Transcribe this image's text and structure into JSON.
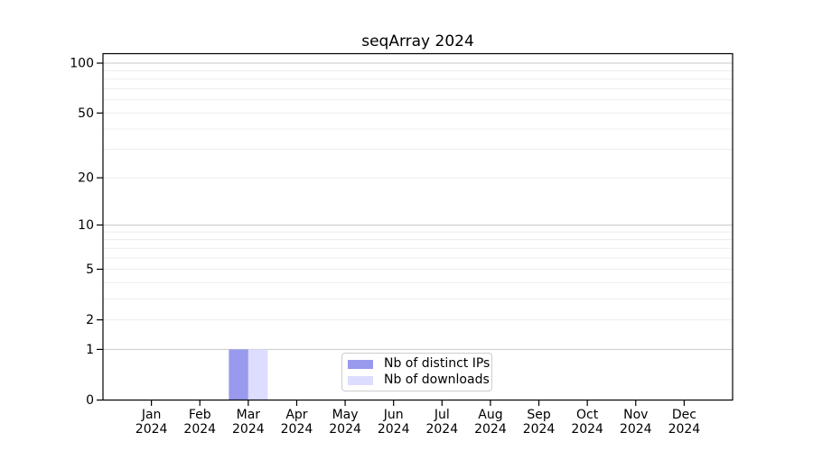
{
  "chart_data": {
    "type": "bar",
    "title": "seqArray 2024",
    "categories": [
      "Jan",
      "Feb",
      "Mar",
      "Apr",
      "May",
      "Jun",
      "Jul",
      "Aug",
      "Sep",
      "Oct",
      "Nov",
      "Dec"
    ],
    "x_tick_year": "2024",
    "series": [
      {
        "name": "Nb of distinct IPs",
        "color": "#9999ee",
        "values": [
          0,
          0,
          1,
          0,
          0,
          0,
          0,
          0,
          0,
          0,
          0,
          0
        ]
      },
      {
        "name": "Nb of downloads",
        "color": "#ddddff",
        "values": [
          0,
          0,
          1,
          0,
          0,
          0,
          0,
          0,
          0,
          0,
          0,
          0
        ]
      }
    ],
    "yscale": "log1p",
    "y_axis": {
      "tick_values": [
        0,
        1,
        2,
        5,
        10,
        20,
        50,
        100
      ],
      "range_max": 100,
      "major_grid_values": [
        1,
        10,
        100
      ],
      "minor_grid_values": [
        2,
        3,
        4,
        5,
        6,
        7,
        8,
        9,
        20,
        30,
        40,
        50,
        60,
        70,
        80,
        90
      ]
    },
    "legend": {
      "position": "lower center"
    },
    "colors": {
      "axis": "#000000",
      "tick_text": "#000000",
      "major_grid": "#c9c9c9",
      "minor_grid": "#ececec"
    },
    "grid": "horizontal-only",
    "xlabel": "",
    "ylabel": ""
  }
}
